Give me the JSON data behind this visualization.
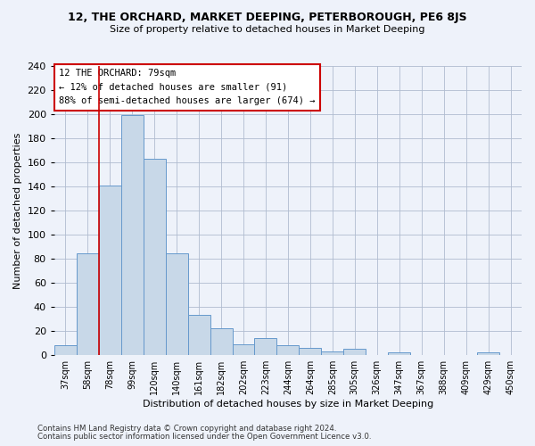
{
  "title": "12, THE ORCHARD, MARKET DEEPING, PETERBOROUGH, PE6 8JS",
  "subtitle": "Size of property relative to detached houses in Market Deeping",
  "xlabel": "Distribution of detached houses by size in Market Deeping",
  "ylabel": "Number of detached properties",
  "footnote1": "Contains HM Land Registry data © Crown copyright and database right 2024.",
  "footnote2": "Contains public sector information licensed under the Open Government Licence v3.0.",
  "annotation_title": "12 THE ORCHARD: 79sqm",
  "annotation_line1": "← 12% of detached houses are smaller (91)",
  "annotation_line2": "88% of semi-detached houses are larger (674) →",
  "bar_labels": [
    "37sqm",
    "58sqm",
    "78sqm",
    "99sqm",
    "120sqm",
    "140sqm",
    "161sqm",
    "182sqm",
    "202sqm",
    "223sqm",
    "244sqm",
    "264sqm",
    "285sqm",
    "305sqm",
    "326sqm",
    "347sqm",
    "367sqm",
    "388sqm",
    "409sqm",
    "429sqm",
    "450sqm"
  ],
  "bar_values": [
    8,
    84,
    141,
    199,
    163,
    84,
    33,
    22,
    9,
    14,
    8,
    6,
    3,
    5,
    0,
    2,
    0,
    0,
    0,
    2,
    0
  ],
  "bar_color": "#c8d8e8",
  "bar_edge_color": "#6699cc",
  "vline_color": "#cc0000",
  "bg_color": "#eef2fa",
  "grid_color": "#b0bcd0",
  "ylim": [
    0,
    240
  ],
  "yticks": [
    0,
    20,
    40,
    60,
    80,
    100,
    120,
    140,
    160,
    180,
    200,
    220,
    240
  ]
}
